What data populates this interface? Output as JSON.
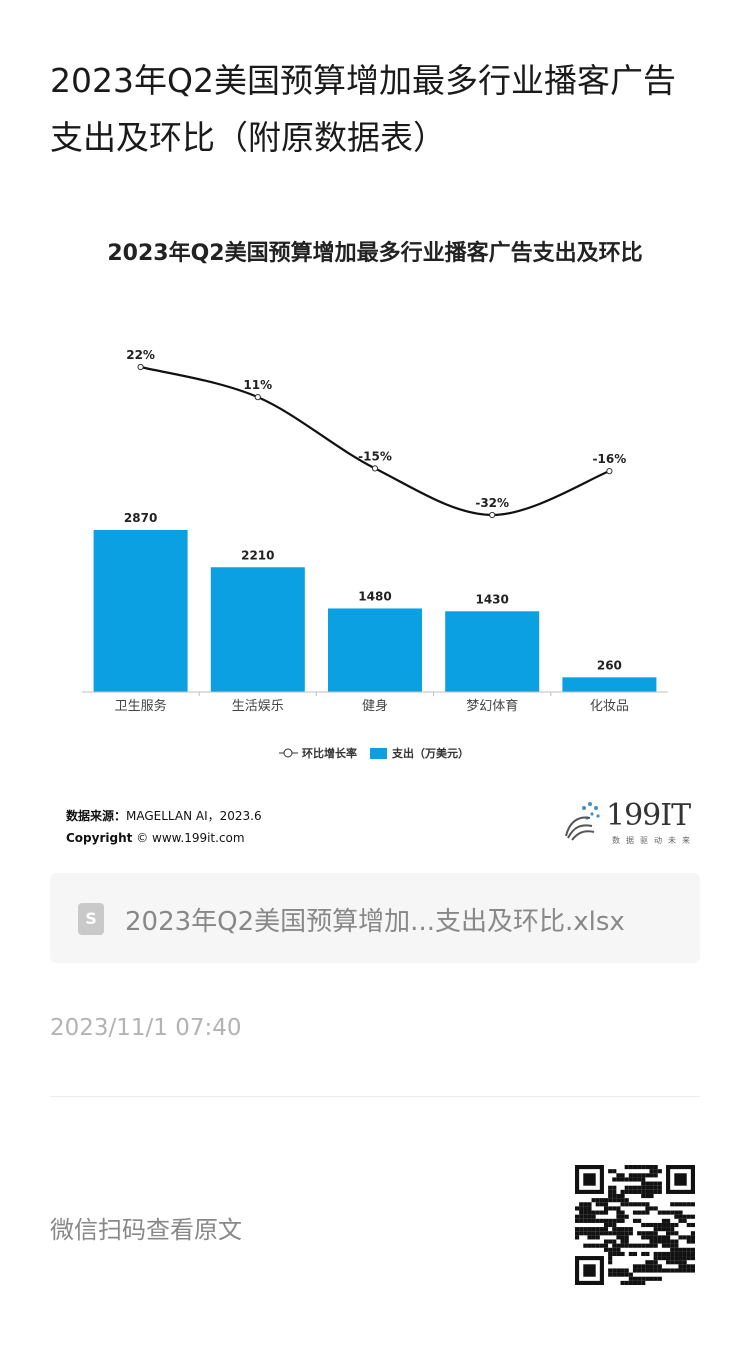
{
  "article": {
    "title": "2023年Q2美国预算增加最多行业播客广告支出及环比（附原数据表）"
  },
  "chart_data": {
    "type": "bar+line",
    "title": "2023年Q2美国预算增加最多行业播客广告支出及环比",
    "categories": [
      "卫生服务",
      "生活娱乐",
      "健身",
      "梦幻体育",
      "化妆品"
    ],
    "series": [
      {
        "name": "支出（万美元）",
        "type": "bar",
        "values": [
          2870,
          2210,
          1480,
          1430,
          260
        ],
        "labels": [
          "2870",
          "2210",
          "1480",
          "1430",
          "260"
        ],
        "color": "#0aa0e2"
      },
      {
        "name": "环比增长率",
        "type": "line",
        "values": [
          22,
          11,
          -15,
          -32,
          -16
        ],
        "labels": [
          "22%",
          "11%",
          "-15%",
          "-32%",
          "-16%"
        ],
        "color": "#111111"
      }
    ],
    "legend_position": "bottom",
    "grid": false
  },
  "source": {
    "label": "数据来源：",
    "value": "MAGELLAN AI，2023.6",
    "copyright_label": "Copyright",
    "copyright_symbol": "©",
    "copyright_value": "www.199it.com"
  },
  "logo": {
    "text": "199IT",
    "subtitle": "数据驱动未来"
  },
  "attachment": {
    "filename": "2023年Q2美国预算增加...支出及环比.xlsx"
  },
  "timestamp": "2023/11/1 07:40",
  "footer": {
    "qr_hint": "微信扫码查看原文"
  }
}
